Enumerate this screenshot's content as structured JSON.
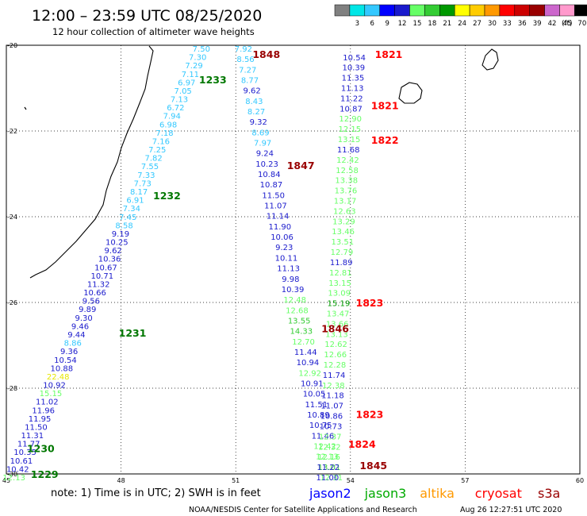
{
  "header": {
    "title": "12:00 – 23:59 UTC 08/25/2020",
    "subtitle": "12 hour collection of altimeter wave heights"
  },
  "colorbar": {
    "unit": "(ft)",
    "bins": [
      {
        "label": "",
        "color": "#808080"
      },
      {
        "label": "3",
        "color": "#00e6e6"
      },
      {
        "label": "6",
        "color": "#33c8ff"
      },
      {
        "label": "9",
        "color": "#0000ff"
      },
      {
        "label": "12",
        "color": "#1a1acc"
      },
      {
        "label": "15",
        "color": "#66ff66"
      },
      {
        "label": "18",
        "color": "#33cc33"
      },
      {
        "label": "21",
        "color": "#009900"
      },
      {
        "label": "24",
        "color": "#ffff00"
      },
      {
        "label": "27",
        "color": "#ffcc00"
      },
      {
        "label": "30",
        "color": "#ff9900"
      },
      {
        "label": "33",
        "color": "#ff0000"
      },
      {
        "label": "36",
        "color": "#cc0000"
      },
      {
        "label": "39",
        "color": "#990000"
      },
      {
        "label": "42",
        "color": "#cc66cc"
      },
      {
        "label": "45",
        "color": "#ff99cc"
      },
      {
        "label": "70",
        "color": "#000000"
      }
    ]
  },
  "axes": {
    "lon_ticks": [
      "45",
      "48",
      "51",
      "54",
      "57",
      "60"
    ],
    "lat_ticks": [
      "-20",
      "-22",
      "-24",
      "-26",
      "-28",
      "-30"
    ]
  },
  "footer": {
    "note": "note: 1) Time is in UTC; 2) SWH is in feet",
    "legend": [
      {
        "label": "jason2",
        "color": "#0000ff"
      },
      {
        "label": "jason3",
        "color": "#00aa00"
      },
      {
        "label": "altika",
        "color": "#ff9900"
      },
      {
        "label": "cryosat",
        "color": "#ff0000"
      },
      {
        "label": "s3a",
        "color": "#990000"
      }
    ],
    "credit": "NOAA/NESDIS Center for Satellite Applications and Research",
    "timestamp": "Aug 26 12:27:51 UTC 2020"
  },
  "time_labels": [
    {
      "text": "1848",
      "lon": 51.8,
      "lat": -20.2,
      "color": "#990000"
    },
    {
      "text": "1233",
      "lon": 50.4,
      "lat": -20.8,
      "color": "#007700"
    },
    {
      "text": "1821",
      "lon": 55.0,
      "lat": -20.2,
      "color": "#ff0000"
    },
    {
      "text": "1821",
      "lon": 54.9,
      "lat": -21.4,
      "color": "#ff0000"
    },
    {
      "text": "1822",
      "lon": 54.9,
      "lat": -22.2,
      "color": "#ff0000"
    },
    {
      "text": "1847",
      "lon": 52.7,
      "lat": -22.8,
      "color": "#990000"
    },
    {
      "text": "1232",
      "lon": 49.2,
      "lat": -23.5,
      "color": "#007700"
    },
    {
      "text": "1823",
      "lon": 54.5,
      "lat": -26.0,
      "color": "#ff0000"
    },
    {
      "text": "1846",
      "lon": 53.6,
      "lat": -26.6,
      "color": "#990000"
    },
    {
      "text": "1231",
      "lon": 48.3,
      "lat": -26.7,
      "color": "#007700"
    },
    {
      "text": "1823",
      "lon": 54.5,
      "lat": -28.6,
      "color": "#ff0000"
    },
    {
      "text": "1824",
      "lon": 54.3,
      "lat": -29.3,
      "color": "#ff0000"
    },
    {
      "text": "1230",
      "lon": 45.9,
      "lat": -29.4,
      "color": "#007700"
    },
    {
      "text": "1845",
      "lon": 54.6,
      "lat": -29.8,
      "color": "#990000"
    },
    {
      "text": "1229",
      "lon": 46.0,
      "lat": -30.0,
      "color": "#007700"
    }
  ],
  "tracks": [
    {
      "name": "track-a",
      "start": {
        "lon": 50.1,
        "lat": -20.0
      },
      "end": {
        "lon": 45.2,
        "lat": -30.0
      },
      "values": [
        {
          "v": "7.50",
          "c": "#33c8ff"
        },
        {
          "v": "7.30",
          "c": "#33c8ff"
        },
        {
          "v": "7.29",
          "c": "#33c8ff"
        },
        {
          "v": "7.11",
          "c": "#33c8ff"
        },
        {
          "v": "6.97",
          "c": "#33c8ff"
        },
        {
          "v": "7.05",
          "c": "#33c8ff"
        },
        {
          "v": "7.13",
          "c": "#33c8ff"
        },
        {
          "v": "6.72",
          "c": "#33c8ff"
        },
        {
          "v": "7.94",
          "c": "#33c8ff"
        },
        {
          "v": "6.98",
          "c": "#33c8ff"
        },
        {
          "v": "7.18",
          "c": "#33c8ff"
        },
        {
          "v": "7.16",
          "c": "#33c8ff"
        },
        {
          "v": "7.25",
          "c": "#33c8ff"
        },
        {
          "v": "7.82",
          "c": "#33c8ff"
        },
        {
          "v": "7.55",
          "c": "#33c8ff"
        },
        {
          "v": "7.33",
          "c": "#33c8ff"
        },
        {
          "v": "7.73",
          "c": "#33c8ff"
        },
        {
          "v": "8.17",
          "c": "#33c8ff"
        },
        {
          "v": "6.91",
          "c": "#33c8ff"
        },
        {
          "v": "7.34",
          "c": "#33c8ff"
        },
        {
          "v": "7.45",
          "c": "#33c8ff"
        },
        {
          "v": "8.58",
          "c": "#33c8ff"
        },
        {
          "v": "9.19",
          "c": "#1a1acc"
        },
        {
          "v": "10.25",
          "c": "#1a1acc"
        },
        {
          "v": "9.62",
          "c": "#1a1acc"
        },
        {
          "v": "10.36",
          "c": "#1a1acc"
        },
        {
          "v": "10.67",
          "c": "#1a1acc"
        },
        {
          "v": "10.71",
          "c": "#1a1acc"
        },
        {
          "v": "11.32",
          "c": "#1a1acc"
        },
        {
          "v": "10.66",
          "c": "#1a1acc"
        },
        {
          "v": "9.56",
          "c": "#1a1acc"
        },
        {
          "v": "9.89",
          "c": "#1a1acc"
        },
        {
          "v": "9.30",
          "c": "#1a1acc"
        },
        {
          "v": "9.46",
          "c": "#1a1acc"
        },
        {
          "v": "9.44",
          "c": "#1a1acc"
        },
        {
          "v": "8.86",
          "c": "#33c8ff"
        },
        {
          "v": "9.36",
          "c": "#1a1acc"
        },
        {
          "v": "10.54",
          "c": "#1a1acc"
        },
        {
          "v": "10.88",
          "c": "#1a1acc"
        },
        {
          "v": "22.48",
          "c": "#e6e600"
        },
        {
          "v": "10.92",
          "c": "#1a1acc"
        },
        {
          "v": "15.15",
          "c": "#66ff66"
        },
        {
          "v": "11.02",
          "c": "#1a1acc"
        },
        {
          "v": "11.96",
          "c": "#1a1acc"
        },
        {
          "v": "11.95",
          "c": "#1a1acc"
        },
        {
          "v": "11.50",
          "c": "#1a1acc"
        },
        {
          "v": "11.31",
          "c": "#1a1acc"
        },
        {
          "v": "11.77",
          "c": "#1a1acc"
        },
        {
          "v": "10.35",
          "c": "#1a1acc"
        },
        {
          "v": "10.61",
          "c": "#1a1acc"
        },
        {
          "v": "10.42",
          "c": "#1a1acc"
        },
        {
          "v": "12.13",
          "c": "#66ff66"
        }
      ]
    },
    {
      "name": "track-b",
      "start": {
        "lon": 51.2,
        "lat": -20.0
      },
      "end": {
        "lon": 53.5,
        "lat": -30.0
      },
      "values": [
        {
          "v": "7.92",
          "c": "#33c8ff"
        },
        {
          "v": "8.56",
          "c": "#33c8ff"
        },
        {
          "v": "7.27",
          "c": "#33c8ff"
        },
        {
          "v": "8.77",
          "c": "#33c8ff"
        },
        {
          "v": "9.62",
          "c": "#1a1acc"
        },
        {
          "v": "8.43",
          "c": "#33c8ff"
        },
        {
          "v": "8.27",
          "c": "#33c8ff"
        },
        {
          "v": "9.32",
          "c": "#1a1acc"
        },
        {
          "v": "8.69",
          "c": "#33c8ff"
        },
        {
          "v": "7.97",
          "c": "#33c8ff"
        },
        {
          "v": "9.24",
          "c": "#1a1acc"
        },
        {
          "v": "10.23",
          "c": "#1a1acc"
        },
        {
          "v": "10.84",
          "c": "#1a1acc"
        },
        {
          "v": "10.87",
          "c": "#1a1acc"
        },
        {
          "v": "11.50",
          "c": "#1a1acc"
        },
        {
          "v": "11.07",
          "c": "#1a1acc"
        },
        {
          "v": "11.14",
          "c": "#1a1acc"
        },
        {
          "v": "11.90",
          "c": "#1a1acc"
        },
        {
          "v": "10.06",
          "c": "#1a1acc"
        },
        {
          "v": "9.23",
          "c": "#1a1acc"
        },
        {
          "v": "10.11",
          "c": "#1a1acc"
        },
        {
          "v": "11.13",
          "c": "#1a1acc"
        },
        {
          "v": "9.98",
          "c": "#1a1acc"
        },
        {
          "v": "10.39",
          "c": "#1a1acc"
        },
        {
          "v": "12.48",
          "c": "#66ff66"
        },
        {
          "v": "12.68",
          "c": "#66ff66"
        },
        {
          "v": "13.55",
          "c": "#33cc33"
        },
        {
          "v": "14.33",
          "c": "#33cc33"
        },
        {
          "v": "12.70",
          "c": "#66ff66"
        },
        {
          "v": "11.44",
          "c": "#1a1acc"
        },
        {
          "v": "10.94",
          "c": "#1a1acc"
        },
        {
          "v": "12.92",
          "c": "#66ff66"
        },
        {
          "v": "10.91",
          "c": "#1a1acc"
        },
        {
          "v": "10.05",
          "c": "#1a1acc"
        },
        {
          "v": "11.51",
          "c": "#1a1acc"
        },
        {
          "v": "10.89",
          "c": "#1a1acc"
        },
        {
          "v": "10.75",
          "c": "#1a1acc"
        },
        {
          "v": "11.46",
          "c": "#1a1acc"
        },
        {
          "v": "12.42",
          "c": "#66ff66"
        },
        {
          "v": "12.13",
          "c": "#66ff66"
        },
        {
          "v": "13.01",
          "c": "#33cc33"
        },
        {
          "v": "12.31",
          "c": "#66ff66"
        }
      ]
    },
    {
      "name": "track-c",
      "start": {
        "lon": 54.1,
        "lat": -20.2
      },
      "end": {
        "lon": 53.4,
        "lat": -30.0
      },
      "values": [
        {
          "v": "10.54",
          "c": "#1a1acc"
        },
        {
          "v": "10.39",
          "c": "#1a1acc"
        },
        {
          "v": "11.35",
          "c": "#1a1acc"
        },
        {
          "v": "11.13",
          "c": "#1a1acc"
        },
        {
          "v": "11.22",
          "c": "#1a1acc"
        },
        {
          "v": "10.87",
          "c": "#1a1acc"
        },
        {
          "v": "12.90",
          "c": "#66ff66"
        },
        {
          "v": "12.15",
          "c": "#66ff66"
        },
        {
          "v": "13.15",
          "c": "#66ff66"
        },
        {
          "v": "11.68",
          "c": "#1a1acc"
        },
        {
          "v": "12.42",
          "c": "#66ff66"
        },
        {
          "v": "12.58",
          "c": "#66ff66"
        },
        {
          "v": "13.38",
          "c": "#66ff66"
        },
        {
          "v": "13.76",
          "c": "#66ff66"
        },
        {
          "v": "13.17",
          "c": "#66ff66"
        },
        {
          "v": "12.63",
          "c": "#66ff66"
        },
        {
          "v": "13.29",
          "c": "#66ff66"
        },
        {
          "v": "13.46",
          "c": "#66ff66"
        },
        {
          "v": "13.51",
          "c": "#66ff66"
        },
        {
          "v": "12.79",
          "c": "#66ff66"
        },
        {
          "v": "11.89",
          "c": "#1a1acc"
        },
        {
          "v": "12.81",
          "c": "#66ff66"
        },
        {
          "v": "13.15",
          "c": "#66ff66"
        },
        {
          "v": "13.09",
          "c": "#66ff66"
        },
        {
          "v": "15.19",
          "c": "#009900"
        },
        {
          "v": "13.47",
          "c": "#66ff66"
        },
        {
          "v": "13.66",
          "c": "#66ff66"
        },
        {
          "v": "13.13",
          "c": "#66ff66"
        },
        {
          "v": "12.62",
          "c": "#66ff66"
        },
        {
          "v": "12.66",
          "c": "#66ff66"
        },
        {
          "v": "12.28",
          "c": "#66ff66"
        },
        {
          "v": "11.74",
          "c": "#1a1acc"
        },
        {
          "v": "12.38",
          "c": "#66ff66"
        },
        {
          "v": "11.18",
          "c": "#1a1acc"
        },
        {
          "v": "11.07",
          "c": "#1a1acc"
        },
        {
          "v": "10.86",
          "c": "#1a1acc"
        },
        {
          "v": "10.73",
          "c": "#1a1acc"
        },
        {
          "v": "12.37",
          "c": "#66ff66"
        },
        {
          "v": "12.32",
          "c": "#66ff66"
        },
        {
          "v": "12.16",
          "c": "#66ff66"
        },
        {
          "v": "11.22",
          "c": "#1a1acc"
        },
        {
          "v": "11.00",
          "c": "#1a1acc"
        }
      ]
    }
  ]
}
